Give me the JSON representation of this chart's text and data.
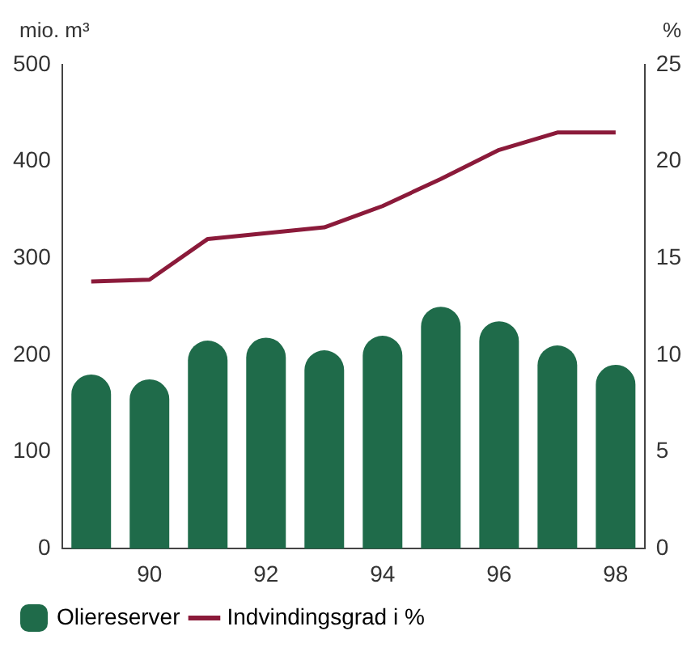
{
  "chart_data": {
    "type": "bar",
    "ylabel": "mio. m³",
    "y2label": "%",
    "categories": [
      null,
      "90",
      null,
      "92",
      null,
      "94",
      null,
      "96",
      null,
      "98"
    ],
    "series": [
      {
        "name": "Oliereserver",
        "color": "#1f6b4a",
        "values": [
          180,
          175,
          215,
          218,
          205,
          220,
          250,
          235,
          210,
          190
        ]
      },
      {
        "name": "Indvindingsgrad i %",
        "type": "line",
        "axis": "y2",
        "color": "#8b1a3a",
        "values": [
          13.8,
          13.9,
          16.0,
          16.3,
          16.6,
          17.7,
          19.1,
          20.6,
          21.5,
          21.5
        ]
      }
    ],
    "ylim": [
      0,
      500
    ],
    "yticks": [
      0,
      100,
      200,
      300,
      400,
      500
    ],
    "y2lim": [
      0,
      25
    ],
    "y2ticks": [
      0,
      5,
      10,
      15,
      20,
      25
    ],
    "grid": false,
    "legend": "bottom",
    "marker": "none",
    "line_style": "solid"
  }
}
